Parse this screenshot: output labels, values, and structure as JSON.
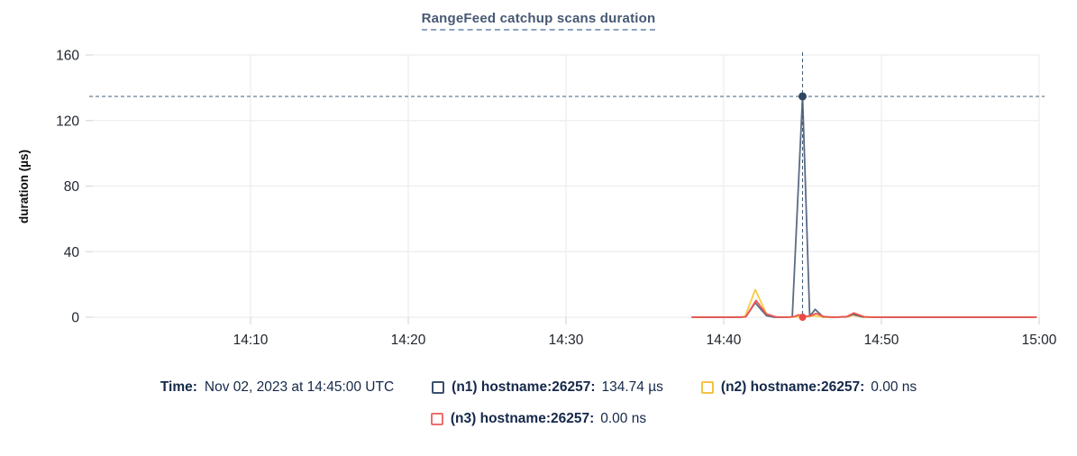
{
  "title": "RangeFeed catchup scans duration",
  "legend": {
    "time_label": "Time:",
    "time_value": "Nov 02, 2023 at 14:45:00 UTC",
    "items": [
      {
        "id": "n1",
        "name": "(n1) hostname:26257:",
        "value": "134.74 µs",
        "color": "#3a506c"
      },
      {
        "id": "n2",
        "name": "(n2) hostname:26257:",
        "value": "0.00 ns",
        "color": "#f5c242"
      },
      {
        "id": "n3",
        "name": "(n3) hostname:26257:",
        "value": "0.00 ns",
        "color": "#ef6e6e"
      }
    ]
  },
  "chart_data": {
    "type": "line",
    "title": "RangeFeed catchup scans duration",
    "xlabel": "",
    "ylabel": "duration (µs)",
    "ylim": [
      0,
      160
    ],
    "yticks": [
      0,
      40,
      80,
      120,
      160
    ],
    "x_axis_start": "14:00",
    "x_axis_end": "15:00",
    "xticks": [
      {
        "min": 10,
        "label": "14:10"
      },
      {
        "min": 20,
        "label": "14:20"
      },
      {
        "min": 30,
        "label": "14:30"
      },
      {
        "min": 40,
        "label": "14:40"
      },
      {
        "min": 50,
        "label": "14:50"
      },
      {
        "min": 60,
        "label": "15:00"
      }
    ],
    "grid": true,
    "legend_position": "bottom",
    "hover": {
      "time": "14:45:00",
      "x_min": 45,
      "value": 134.74,
      "value_label": "134.74 µs",
      "crosshair_color": "#3f5d78",
      "marker_color": "#2f4660",
      "zero_marker_color": "#e84a47"
    },
    "series": [
      {
        "name": "(n2) hostname:26257",
        "color": "#f8cb45",
        "points": [
          [
            38,
            0
          ],
          [
            39,
            0
          ],
          [
            40,
            0
          ],
          [
            41,
            0
          ],
          [
            41.35,
            0.3
          ],
          [
            42,
            16.8
          ],
          [
            42.75,
            1.2
          ],
          [
            43.3,
            0
          ],
          [
            44,
            0
          ],
          [
            44.6,
            0.2
          ],
          [
            45.2,
            0.4
          ],
          [
            45.8,
            0.9
          ],
          [
            46.3,
            0
          ],
          [
            47,
            0
          ],
          [
            47.9,
            0.3
          ],
          [
            48.2,
            1.2
          ],
          [
            48.8,
            0
          ],
          [
            50,
            0
          ],
          [
            52,
            0
          ],
          [
            54,
            0
          ],
          [
            56,
            0
          ],
          [
            58,
            0
          ],
          [
            59.8,
            0
          ]
        ]
      },
      {
        "name": "(n1) hostname:26257",
        "color": "#5b6b82",
        "points": [
          [
            38,
            0
          ],
          [
            39,
            0
          ],
          [
            40,
            0
          ],
          [
            41,
            0
          ],
          [
            41.4,
            0.2
          ],
          [
            42,
            8.8
          ],
          [
            42.7,
            1
          ],
          [
            43.2,
            0
          ],
          [
            44,
            0
          ],
          [
            44.35,
            0.2
          ],
          [
            45,
            134.74
          ],
          [
            45.45,
            0.6
          ],
          [
            45.8,
            4.8
          ],
          [
            46.3,
            0.3
          ],
          [
            47,
            0
          ],
          [
            47.8,
            0.2
          ],
          [
            48.2,
            1.8
          ],
          [
            48.8,
            0.2
          ],
          [
            49.5,
            0
          ],
          [
            50,
            0
          ],
          [
            52,
            0
          ],
          [
            54,
            0
          ],
          [
            56,
            0
          ],
          [
            58,
            0
          ],
          [
            59.8,
            0
          ]
        ]
      },
      {
        "name": "(n3) hostname:26257",
        "color": "#f0564f",
        "points": [
          [
            38,
            0
          ],
          [
            39,
            0
          ],
          [
            40,
            0
          ],
          [
            41,
            0
          ],
          [
            41.4,
            0.3
          ],
          [
            42.05,
            10.2
          ],
          [
            42.7,
            2
          ],
          [
            43.3,
            0.2
          ],
          [
            44,
            0
          ],
          [
            44.45,
            0.3
          ],
          [
            44.75,
            1.5
          ],
          [
            45.1,
            0.4
          ],
          [
            45.5,
            0.8
          ],
          [
            45.85,
            2.3
          ],
          [
            46.35,
            0.4
          ],
          [
            47,
            0
          ],
          [
            47.8,
            0.4
          ],
          [
            48.25,
            2.6
          ],
          [
            48.9,
            0.3
          ],
          [
            49.5,
            0
          ],
          [
            50.5,
            0
          ],
          [
            52,
            0
          ],
          [
            54,
            0
          ],
          [
            55.5,
            0
          ],
          [
            57,
            0
          ],
          [
            58.5,
            0
          ],
          [
            59.8,
            0
          ]
        ]
      }
    ]
  }
}
